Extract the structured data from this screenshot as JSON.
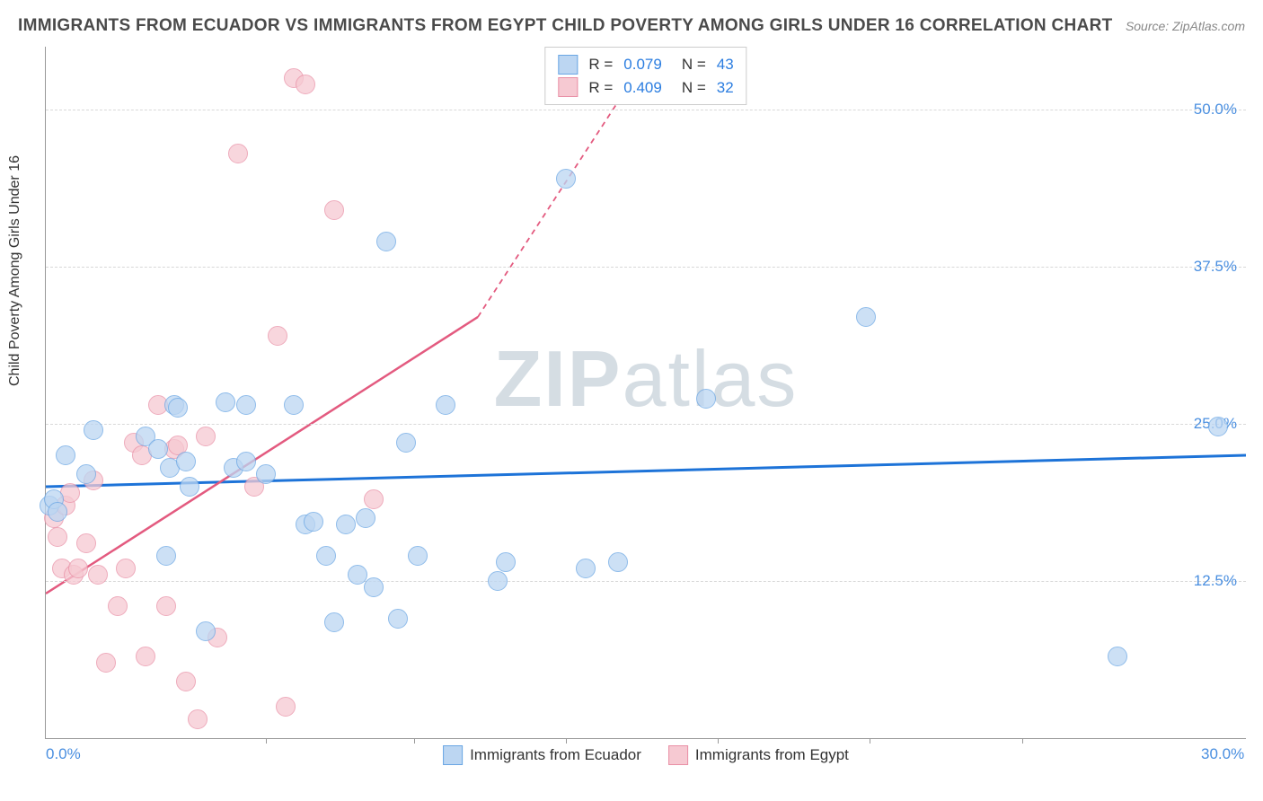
{
  "title": "IMMIGRANTS FROM ECUADOR VS IMMIGRANTS FROM EGYPT CHILD POVERTY AMONG GIRLS UNDER 16 CORRELATION CHART",
  "source": "Source: ZipAtlas.com",
  "ylabel": "Child Poverty Among Girls Under 16",
  "watermark_a": "ZIP",
  "watermark_b": "atlas",
  "colors": {
    "series1_fill": "#bcd6f2",
    "series1_stroke": "#6aa6e4",
    "series2_fill": "#f6c9d2",
    "series2_stroke": "#e990a6",
    "trend1": "#1d73d8",
    "trend2": "#e35a7f",
    "grid": "#d8d8d8",
    "tick_text": "#4a8fe0",
    "axis": "#999999",
    "title_text": "#4a4a4a"
  },
  "xlim": [
    0,
    30
  ],
  "ylim": [
    0,
    55
  ],
  "yticks": [
    12.5,
    25.0,
    37.5,
    50.0
  ],
  "ytick_labels": [
    "12.5%",
    "25.0%",
    "37.5%",
    "50.0%"
  ],
  "xticks": [
    0,
    30
  ],
  "xtick_labels": [
    "0.0%",
    "30.0%"
  ],
  "xtick_marks": [
    5.5,
    9.2,
    13.0,
    16.8,
    20.6,
    24.4
  ],
  "point_radius": 10,
  "legend_top": [
    {
      "swatch": "series1",
      "r_label": "R =",
      "r": "0.079",
      "n_label": "N =",
      "n": "43"
    },
    {
      "swatch": "series2",
      "r_label": "R =",
      "r": "0.409",
      "n_label": "N =",
      "n": "32"
    }
  ],
  "legend_bottom": [
    {
      "swatch": "series1",
      "label": "Immigrants from Ecuador"
    },
    {
      "swatch": "series2",
      "label": "Immigrants from Egypt"
    }
  ],
  "trend_lines": {
    "series1": {
      "x1": 0,
      "y1": 20.0,
      "x2": 30,
      "y2": 22.5,
      "dashed_from_x": null
    },
    "series2": {
      "x1": 0,
      "y1": 11.5,
      "x2": 15.2,
      "y2": 55.0,
      "solid_to_x": 10.8,
      "solid_to_y": 33.5
    }
  },
  "series1_points": [
    [
      0.1,
      18.5
    ],
    [
      0.2,
      19.0
    ],
    [
      0.3,
      18.0
    ],
    [
      0.5,
      22.5
    ],
    [
      1.0,
      21.0
    ],
    [
      1.2,
      24.5
    ],
    [
      2.5,
      24.0
    ],
    [
      2.8,
      23.0
    ],
    [
      3.0,
      14.5
    ],
    [
      3.1,
      21.5
    ],
    [
      3.2,
      26.5
    ],
    [
      3.3,
      26.3
    ],
    [
      3.5,
      22.0
    ],
    [
      3.6,
      20.0
    ],
    [
      4.0,
      8.5
    ],
    [
      4.5,
      26.7
    ],
    [
      4.7,
      21.5
    ],
    [
      5.0,
      22.0
    ],
    [
      5.0,
      26.5
    ],
    [
      5.5,
      21.0
    ],
    [
      6.2,
      26.5
    ],
    [
      6.5,
      17.0
    ],
    [
      6.7,
      17.2
    ],
    [
      7.0,
      14.5
    ],
    [
      7.2,
      9.2
    ],
    [
      7.5,
      17.0
    ],
    [
      7.8,
      13.0
    ],
    [
      8.0,
      17.5
    ],
    [
      8.2,
      12.0
    ],
    [
      8.5,
      39.5
    ],
    [
      8.8,
      9.5
    ],
    [
      9.0,
      23.5
    ],
    [
      9.3,
      14.5
    ],
    [
      10.0,
      26.5
    ],
    [
      11.3,
      12.5
    ],
    [
      11.5,
      14.0
    ],
    [
      13.0,
      44.5
    ],
    [
      13.5,
      13.5
    ],
    [
      14.3,
      14.0
    ],
    [
      16.5,
      27.0
    ],
    [
      20.5,
      33.5
    ],
    [
      26.8,
      6.5
    ],
    [
      29.3,
      24.8
    ]
  ],
  "series2_points": [
    [
      0.2,
      17.5
    ],
    [
      0.3,
      16.0
    ],
    [
      0.4,
      13.5
    ],
    [
      0.5,
      18.5
    ],
    [
      0.6,
      19.5
    ],
    [
      0.7,
      13.0
    ],
    [
      0.8,
      13.5
    ],
    [
      1.0,
      15.5
    ],
    [
      1.2,
      20.5
    ],
    [
      1.3,
      13.0
    ],
    [
      1.5,
      6.0
    ],
    [
      1.8,
      10.5
    ],
    [
      2.0,
      13.5
    ],
    [
      2.2,
      23.5
    ],
    [
      2.4,
      22.5
    ],
    [
      2.5,
      6.5
    ],
    [
      2.8,
      26.5
    ],
    [
      3.0,
      10.5
    ],
    [
      3.2,
      23.0
    ],
    [
      3.3,
      23.3
    ],
    [
      3.5,
      4.5
    ],
    [
      3.8,
      1.5
    ],
    [
      4.0,
      24.0
    ],
    [
      4.3,
      8.0
    ],
    [
      4.8,
      46.5
    ],
    [
      5.2,
      20.0
    ],
    [
      5.8,
      32.0
    ],
    [
      6.0,
      2.5
    ],
    [
      6.2,
      52.5
    ],
    [
      6.5,
      52.0
    ],
    [
      7.2,
      42.0
    ],
    [
      8.2,
      19.0
    ]
  ]
}
